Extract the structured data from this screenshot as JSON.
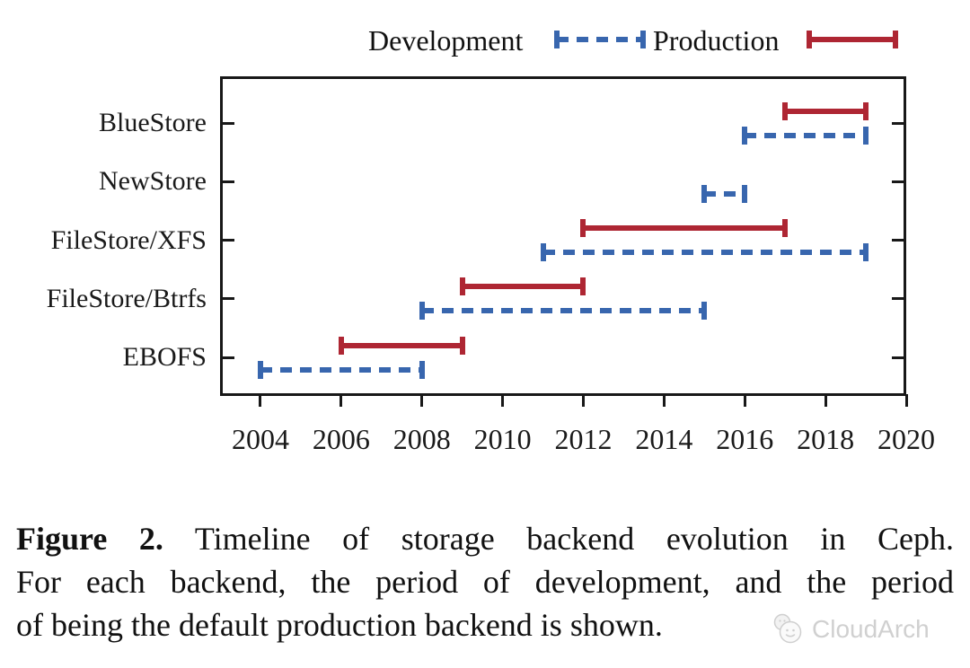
{
  "legend": {
    "development_label": "Development",
    "production_label": "Production"
  },
  "colors": {
    "development": "#3866ae",
    "production": "#ae2633",
    "frame": "#181818",
    "text": "#1a1a1a",
    "watermark": "#d0d0d0"
  },
  "chart_data": {
    "type": "timeline",
    "title": "",
    "categories": [
      "BlueStore",
      "NewStore",
      "FileStore/XFS",
      "FileStore/Btrfs",
      "EBOFS"
    ],
    "series": [
      {
        "name": "Development",
        "style": "dashed",
        "color": "#3866ae",
        "ranges": [
          [
            2016,
            2019
          ],
          [
            2015,
            2016
          ],
          [
            2011,
            2019
          ],
          [
            2008,
            2015
          ],
          [
            2004,
            2008
          ]
        ]
      },
      {
        "name": "Production",
        "style": "solid",
        "color": "#ae2633",
        "ranges": [
          [
            2017,
            2019
          ],
          null,
          [
            2012,
            2017
          ],
          [
            2009,
            2012
          ],
          [
            2006,
            2009
          ]
        ]
      }
    ],
    "xlim": [
      2003,
      2020
    ],
    "xticks": [
      2004,
      2006,
      2008,
      2010,
      2012,
      2014,
      2016,
      2018,
      2020
    ],
    "grid": "off",
    "legend_position": "top"
  },
  "caption": {
    "figure_label": "Figure 2.",
    "line1_rest": " Timeline of storage backend evolution in Ceph.",
    "line2": "For each backend, the period of development, and the period",
    "line3": "of being the default production backend is shown."
  },
  "watermark": {
    "label": "CloudArch",
    "icon": "smiley-chat-icon"
  }
}
